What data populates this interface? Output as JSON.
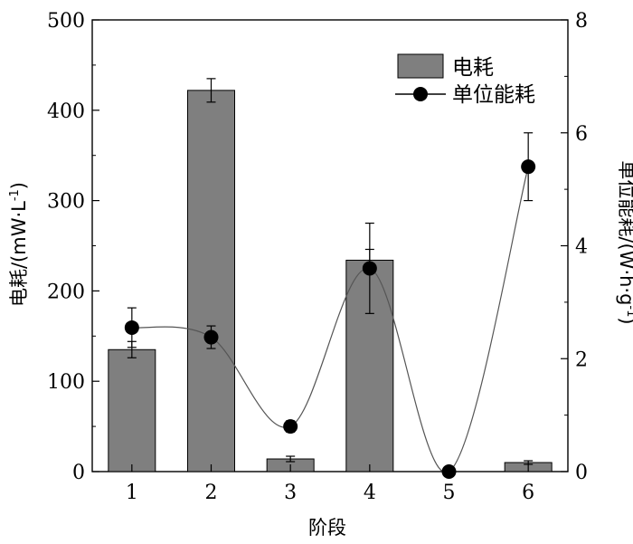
{
  "chart_data": {
    "type": "bar",
    "categories": [
      "1",
      "2",
      "3",
      "4",
      "5",
      "6"
    ],
    "xlabel": "阶段",
    "ylabel": "电耗/(mW·L",
    "ylabel_sup": "-1",
    "ylabel_close": ")",
    "y2label": "单位能耗/(W·h·g",
    "y2label_sup": "-1",
    "y2label_close": ")",
    "ylim": [
      0,
      500
    ],
    "y2lim": [
      0,
      8
    ],
    "yticks": [
      "0",
      "100",
      "200",
      "300",
      "400",
      "500"
    ],
    "y2ticks": [
      "0",
      "2",
      "4",
      "6",
      "8"
    ],
    "legend_placement": "top-right",
    "series": [
      {
        "name": "电耗",
        "kind": "bar",
        "axis": "left",
        "color": "#7f7f7f",
        "values": [
          135,
          422,
          14,
          234,
          0,
          10
        ],
        "errors": [
          9,
          13,
          3,
          12,
          0,
          2
        ]
      },
      {
        "name": "单位能耗",
        "kind": "line-smooth-markers",
        "axis": "right",
        "color": "#000000",
        "values": [
          2.55,
          2.38,
          0.8,
          3.6,
          0.0,
          5.4
        ],
        "errors": [
          0.35,
          0.2,
          0.1,
          0.8,
          0.0,
          0.6
        ]
      }
    ]
  }
}
